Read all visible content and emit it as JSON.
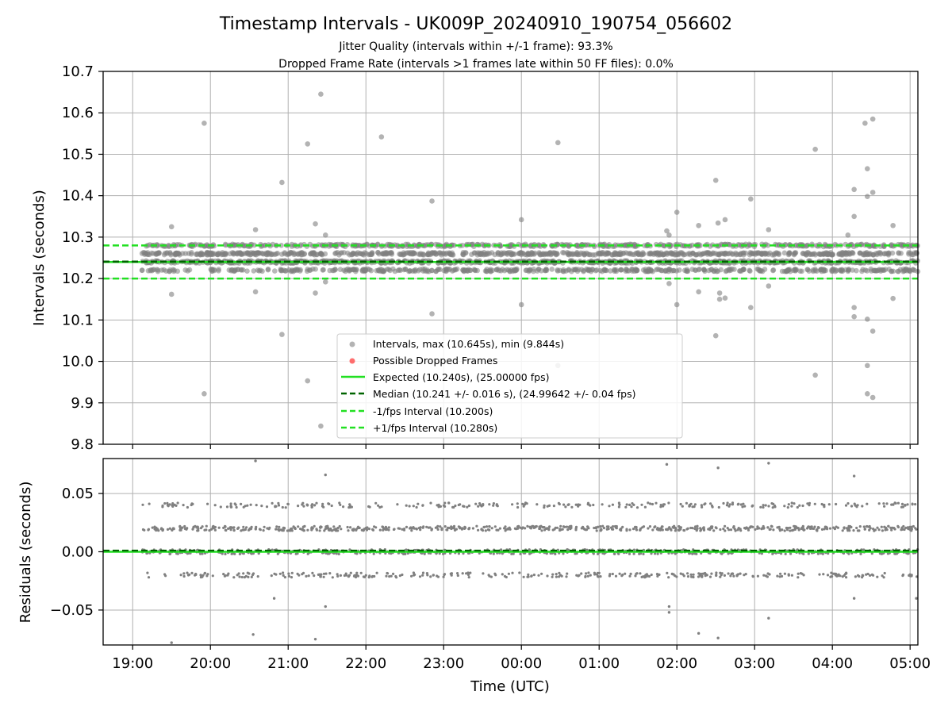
{
  "chart_data": [
    {
      "type": "scatter",
      "title": "Timestamp Intervals - UK009P_20240910_190754_056602",
      "subtitle_lines": [
        "Jitter Quality (intervals within +/-1 frame): 93.3%",
        "Dropped Frame Rate (intervals >1 frames late within 50 FF files): 0.0%"
      ],
      "xlabel": "",
      "ylabel": "Intervals (seconds)",
      "ylim": [
        9.8,
        10.7
      ],
      "yticks": [
        "9.8",
        "9.9",
        "10.0",
        "10.1",
        "10.2",
        "10.3",
        "10.4",
        "10.5",
        "10.6",
        "10.7"
      ],
      "grid": true,
      "legend_position": "lower-center",
      "legend": [
        "Intervals, max (10.645s), min (9.844s)",
        "Possible Dropped Frames",
        "Expected (10.240s), (25.00000 fps)",
        "Median (10.241 +/- 0.016 s), (24.99642 +/- 0.04 fps)",
        "-1/fps Interval (10.200s)",
        "+1/fps Interval (10.280s)"
      ],
      "reference_lines": {
        "expected": 10.24,
        "median": 10.241,
        "minus_one_fps": 10.2,
        "plus_one_fps": 10.28
      },
      "bands": [
        10.22,
        10.24,
        10.26,
        10.28
      ],
      "outliers": [
        {
          "x": 19.5,
          "y": 10.325
        },
        {
          "x": 19.5,
          "y": 10.162
        },
        {
          "x": 19.92,
          "y": 10.575
        },
        {
          "x": 19.92,
          "y": 9.922
        },
        {
          "x": 20.58,
          "y": 10.318
        },
        {
          "x": 20.58,
          "y": 10.168
        },
        {
          "x": 20.92,
          "y": 10.432
        },
        {
          "x": 20.92,
          "y": 10.065
        },
        {
          "x": 21.25,
          "y": 10.525
        },
        {
          "x": 21.25,
          "y": 9.953
        },
        {
          "x": 21.35,
          "y": 10.332
        },
        {
          "x": 21.35,
          "y": 10.165
        },
        {
          "x": 21.42,
          "y": 10.645
        },
        {
          "x": 21.42,
          "y": 9.844
        },
        {
          "x": 21.48,
          "y": 10.305
        },
        {
          "x": 21.48,
          "y": 10.192
        },
        {
          "x": 22.2,
          "y": 10.542
        },
        {
          "x": 22.85,
          "y": 10.387
        },
        {
          "x": 22.85,
          "y": 10.115
        },
        {
          "x": 24.0,
          "y": 10.342
        },
        {
          "x": 24.0,
          "y": 10.137
        },
        {
          "x": 24.47,
          "y": 10.528
        },
        {
          "x": 24.47,
          "y": 9.99
        },
        {
          "x": 25.87,
          "y": 10.315
        },
        {
          "x": 25.9,
          "y": 10.305
        },
        {
          "x": 25.9,
          "y": 10.188
        },
        {
          "x": 26.0,
          "y": 10.36
        },
        {
          "x": 26.0,
          "y": 10.137
        },
        {
          "x": 26.28,
          "y": 10.328
        },
        {
          "x": 26.28,
          "y": 10.168
        },
        {
          "x": 26.5,
          "y": 10.437
        },
        {
          "x": 26.5,
          "y": 10.062
        },
        {
          "x": 26.53,
          "y": 10.334
        },
        {
          "x": 26.55,
          "y": 10.165
        },
        {
          "x": 26.55,
          "y": 10.15
        },
        {
          "x": 26.62,
          "y": 10.342
        },
        {
          "x": 26.62,
          "y": 10.153
        },
        {
          "x": 26.95,
          "y": 10.392
        },
        {
          "x": 26.95,
          "y": 10.13
        },
        {
          "x": 27.18,
          "y": 10.318
        },
        {
          "x": 27.18,
          "y": 10.182
        },
        {
          "x": 27.78,
          "y": 10.512
        },
        {
          "x": 27.78,
          "y": 9.967
        },
        {
          "x": 28.2,
          "y": 10.305
        },
        {
          "x": 28.28,
          "y": 10.415
        },
        {
          "x": 28.28,
          "y": 10.35
        },
        {
          "x": 28.28,
          "y": 10.13
        },
        {
          "x": 28.28,
          "y": 10.108
        },
        {
          "x": 28.42,
          "y": 10.575
        },
        {
          "x": 28.45,
          "y": 10.465
        },
        {
          "x": 28.45,
          "y": 10.398
        },
        {
          "x": 28.45,
          "y": 10.102
        },
        {
          "x": 28.45,
          "y": 9.99
        },
        {
          "x": 28.45,
          "y": 9.922
        },
        {
          "x": 28.52,
          "y": 10.585
        },
        {
          "x": 28.52,
          "y": 10.408
        },
        {
          "x": 28.52,
          "y": 10.073
        },
        {
          "x": 28.52,
          "y": 9.913
        },
        {
          "x": 28.78,
          "y": 10.328
        },
        {
          "x": 28.78,
          "y": 10.152
        }
      ]
    },
    {
      "type": "scatter",
      "xlabel": "Time (UTC)",
      "ylabel": "Residuals (seconds)",
      "ylim": [
        -0.08,
        0.08
      ],
      "yticks": [
        "−0.05",
        "0.00",
        "0.05"
      ],
      "xlim": [
        18.62,
        29.1
      ],
      "xticks": [
        "19:00",
        "20:00",
        "21:00",
        "22:00",
        "23:00",
        "00:00",
        "01:00",
        "02:00",
        "03:00",
        "04:00",
        "05:00"
      ],
      "grid": true,
      "reference_lines": {
        "zero": 0.0,
        "median_residual": 0.001
      },
      "bands": [
        -0.02,
        0.0,
        0.02,
        0.04
      ],
      "outliers": [
        {
          "x": 19.5,
          "y": -0.078
        },
        {
          "x": 20.55,
          "y": -0.071
        },
        {
          "x": 20.58,
          "y": 0.078
        },
        {
          "x": 20.82,
          "y": -0.04
        },
        {
          "x": 21.35,
          "y": -0.075
        },
        {
          "x": 21.48,
          "y": 0.066
        },
        {
          "x": 21.48,
          "y": -0.047
        },
        {
          "x": 25.87,
          "y": 0.075
        },
        {
          "x": 25.9,
          "y": -0.047
        },
        {
          "x": 25.9,
          "y": -0.052
        },
        {
          "x": 26.28,
          "y": -0.07
        },
        {
          "x": 26.53,
          "y": 0.072
        },
        {
          "x": 26.53,
          "y": -0.074
        },
        {
          "x": 27.18,
          "y": 0.076
        },
        {
          "x": 27.18,
          "y": -0.057
        },
        {
          "x": 28.28,
          "y": 0.065
        },
        {
          "x": 28.28,
          "y": -0.04
        },
        {
          "x": 29.08,
          "y": -0.04
        }
      ]
    }
  ],
  "colors": {
    "points": "#808080",
    "dropped": "#ff3030",
    "expected": "#22e022",
    "median": "#006400",
    "fps_bounds": "#22e022",
    "grid": "#b0b0b0"
  }
}
